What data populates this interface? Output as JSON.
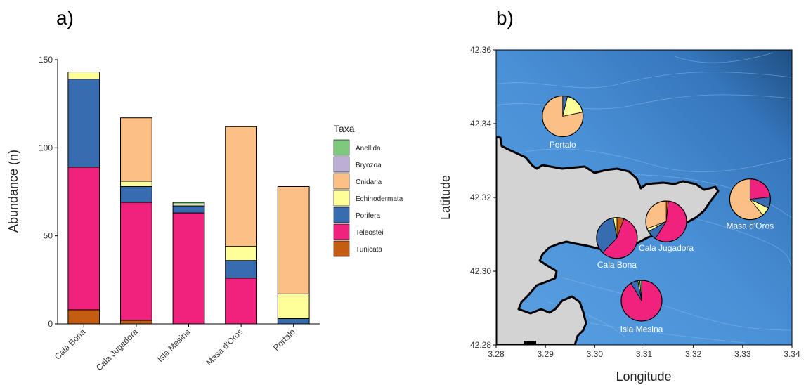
{
  "panels": {
    "a_label": "a)",
    "b_label": "b)"
  },
  "colors": {
    "Anellida": "#7ec97e",
    "Bryozoa": "#bcaed4",
    "Cnidaria": "#fcbf85",
    "Echinodermata": "#ffff99",
    "Porifera": "#386cb0",
    "Teleostei": "#f0227d",
    "Tunicata": "#c45c12",
    "land": "#d3d3d3",
    "sea": "#4a90d6",
    "coast": "#000000"
  },
  "chart_data": [
    {
      "type": "bar",
      "stacked": true,
      "title": "",
      "xlabel": "",
      "ylabel": "Abundance (n)",
      "ylim": [
        0,
        150
      ],
      "yticks": [
        0,
        50,
        100,
        150
      ],
      "categories": [
        "Cala Bona",
        "Cala Jugadora",
        "Isla Mesina",
        "Masa d'Oros",
        "Portalo"
      ],
      "legend_title": "Taxa",
      "legend_position": "right",
      "series": [
        {
          "name": "Tunicata",
          "values": [
            8,
            2,
            0,
            0,
            0
          ]
        },
        {
          "name": "Teleostei",
          "values": [
            81,
            67,
            63,
            26,
            0
          ]
        },
        {
          "name": "Porifera",
          "values": [
            50,
            9,
            4,
            10,
            3
          ]
        },
        {
          "name": "Echinodermata",
          "values": [
            4,
            3,
            1,
            8,
            14
          ]
        },
        {
          "name": "Cnidaria",
          "values": [
            0,
            36,
            0,
            68,
            61
          ]
        },
        {
          "name": "Bryozoa",
          "values": [
            0,
            0,
            0,
            0,
            0
          ]
        },
        {
          "name": "Anellida",
          "values": [
            0,
            0,
            1,
            0,
            0
          ]
        }
      ],
      "legend_order": [
        "Anellida",
        "Bryozoa",
        "Cnidaria",
        "Echinodermata",
        "Porifera",
        "Teleostei",
        "Tunicata"
      ]
    },
    {
      "type": "pie",
      "subtype": "map",
      "xlabel": "Longitude",
      "ylabel": "Latitude",
      "xlim": [
        3.28,
        3.34
      ],
      "ylim": [
        42.28,
        42.36
      ],
      "xticks": [
        "3.28",
        "3.29",
        "3.30",
        "3.31",
        "3.32",
        "3.33",
        "3.34"
      ],
      "yticks": [
        "42.28",
        "42.30",
        "42.32",
        "42.34",
        "42.36"
      ],
      "sites": [
        {
          "name": "Portalo",
          "lon": 3.2935,
          "lat": 42.342,
          "label_lon": 3.2935,
          "label_lat": 42.3335
        },
        {
          "name": "Masa d'Oros",
          "lon": 3.3315,
          "lat": 42.3195,
          "label_lon": 3.3315,
          "label_lat": 42.3115
        },
        {
          "name": "Cala Jugadora",
          "lon": 3.3145,
          "lat": 42.3135,
          "label_lon": 3.3145,
          "label_lat": 42.3055
        },
        {
          "name": "Cala Bona",
          "lon": 3.3045,
          "lat": 42.309,
          "label_lon": 3.3045,
          "label_lat": 42.301
        },
        {
          "name": "Isla Mesina",
          "lon": 3.3095,
          "lat": 42.292,
          "label_lon": 3.3095,
          "label_lat": 42.2835
        }
      ]
    }
  ]
}
